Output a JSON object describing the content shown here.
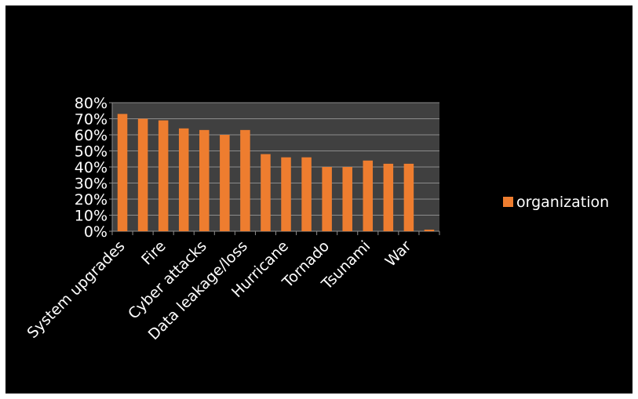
{
  "chart_data": {
    "type": "bar",
    "title": "",
    "xlabel": "",
    "ylabel": "",
    "ylim": [
      0,
      0.8
    ],
    "yticks": [
      "0%",
      "10%",
      "20%",
      "30%",
      "40%",
      "50%",
      "60%",
      "70%",
      "80%"
    ],
    "grid": true,
    "legend_position": "right",
    "shown_category_labels": [
      {
        "index": 0,
        "label": "System upgrades"
      },
      {
        "index": 2,
        "label": "Fire"
      },
      {
        "index": 4,
        "label": "Cyber attacks"
      },
      {
        "index": 6,
        "label": "Data leakage/loss"
      },
      {
        "index": 8,
        "label": "Hurricane"
      },
      {
        "index": 10,
        "label": "Tornado"
      },
      {
        "index": 12,
        "label": "Tsunami"
      },
      {
        "index": 14,
        "label": "War"
      }
    ],
    "series": [
      {
        "name": "organization",
        "color": "#ee7d2f",
        "values": [
          0.73,
          0.7,
          0.69,
          0.64,
          0.63,
          0.6,
          0.63,
          0.48,
          0.46,
          0.46,
          0.4,
          0.4,
          0.44,
          0.42,
          0.42,
          0.01
        ]
      }
    ]
  },
  "colors": {
    "background": "#000000",
    "plot_area": "#404040",
    "gridline": "#8c8c8c",
    "bar": "#ee7d2f",
    "text": "#ffffff"
  }
}
